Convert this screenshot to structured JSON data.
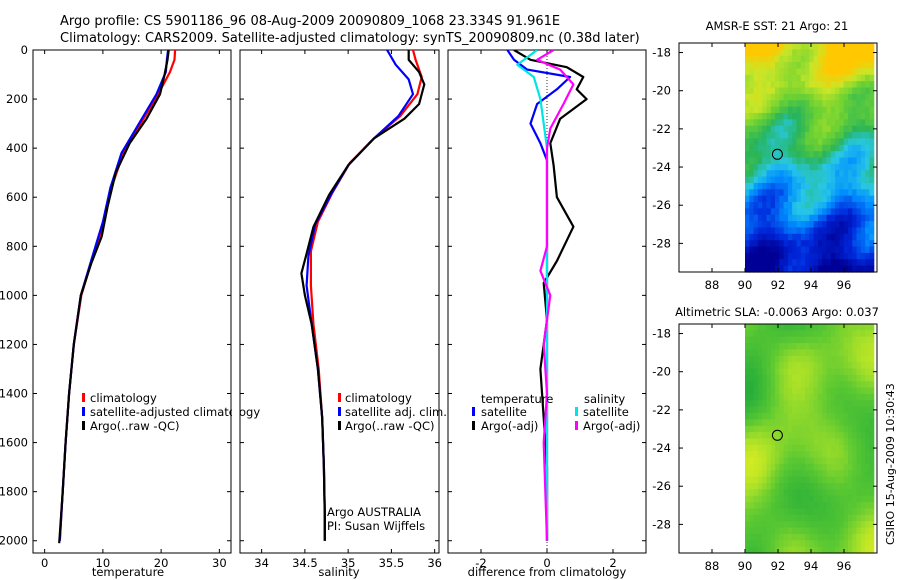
{
  "header": {
    "line1": "Argo profile: CS 5901186_96 08-Aug-2009 20090809_1068 23.334S 91.961E",
    "line2": "Climatology: CARS2009. Satellite-adjusted climatology: synTS_20090809.nc (0.38d later)"
  },
  "side_stamp": "CSIRO 15-Aug-2009 10:30:43",
  "colors": {
    "red": "#ff0000",
    "blue": "#0000ff",
    "black": "#000000",
    "cyan": "#00e5e5",
    "magenta": "#ff00ff",
    "navy": "#0000a0"
  },
  "chart_data": [
    {
      "type": "line",
      "id": "temperature",
      "xlabel": "temperature",
      "ylabel": "",
      "xlim": [
        -2,
        32
      ],
      "ylim": [
        2050,
        0
      ],
      "xticks": [
        "0",
        "10",
        "20",
        "30"
      ],
      "xtick_values": [
        0,
        10,
        20,
        30
      ],
      "yticks": [
        "0",
        "200",
        "400",
        "600",
        "800",
        "1000",
        "1200",
        "1400",
        "1600",
        "1800",
        "2000"
      ],
      "ytick_values": [
        0,
        200,
        400,
        600,
        800,
        1000,
        1200,
        1400,
        1600,
        1800,
        2000
      ],
      "series": [
        {
          "name": "climatology",
          "color": "red",
          "points": [
            [
              22.4,
              0
            ],
            [
              22.3,
              40
            ],
            [
              21.5,
              90
            ],
            [
              19.5,
              180
            ],
            [
              16.5,
              300
            ],
            [
              13.5,
              420
            ],
            [
              11.5,
              560
            ],
            [
              10.2,
              700
            ],
            [
              8.2,
              850
            ],
            [
              6.3,
              1000
            ],
            [
              5.0,
              1200
            ],
            [
              4.2,
              1400
            ],
            [
              3.6,
              1600
            ],
            [
              3.1,
              1800
            ],
            [
              2.6,
              2000
            ]
          ]
        },
        {
          "name": "satellite-adjusted climatology",
          "color": "blue",
          "points": [
            [
              21.2,
              0
            ],
            [
              21.0,
              40
            ],
            [
              20.8,
              90
            ],
            [
              19.2,
              180
            ],
            [
              16.2,
              300
            ],
            [
              13.2,
              420
            ],
            [
              11.3,
              560
            ],
            [
              10.0,
              700
            ],
            [
              8.1,
              850
            ],
            [
              6.2,
              1000
            ],
            [
              5.0,
              1200
            ],
            [
              4.2,
              1400
            ],
            [
              3.6,
              1600
            ],
            [
              3.1,
              1800
            ],
            [
              2.6,
              2000
            ]
          ]
        },
        {
          "name": "Argo(..raw -QC)",
          "color": "black",
          "points": [
            [
              21.3,
              0
            ],
            [
              21.1,
              40
            ],
            [
              20.6,
              100
            ],
            [
              19.8,
              180
            ],
            [
              17.5,
              280
            ],
            [
              14.6,
              380
            ],
            [
              12.2,
              500
            ],
            [
              10.8,
              640
            ],
            [
              9.8,
              760
            ],
            [
              8.0,
              870
            ],
            [
              6.2,
              1000
            ],
            [
              5.0,
              1200
            ],
            [
              4.2,
              1400
            ],
            [
              3.6,
              1600
            ],
            [
              3.1,
              1800
            ],
            [
              2.5,
              2010
            ]
          ]
        }
      ],
      "legend": {
        "placement": "center-left",
        "entries": [
          "climatology",
          "satellite-adjusted climatology",
          "Argo(..raw -QC)"
        ]
      },
      "annotation": ""
    },
    {
      "type": "line",
      "id": "salinity",
      "xlabel": "salinity",
      "xlim": [
        33.75,
        36.05
      ],
      "ylim": [
        2050,
        0
      ],
      "xticks": [
        "34",
        "34.5",
        "35",
        "35.5",
        "36"
      ],
      "xtick_values": [
        34,
        34.5,
        35,
        35.5,
        36
      ],
      "series": [
        {
          "name": "climatology",
          "color": "red",
          "points": [
            [
              35.75,
              0
            ],
            [
              35.78,
              40
            ],
            [
              35.85,
              110
            ],
            [
              35.8,
              180
            ],
            [
              35.6,
              270
            ],
            [
              35.3,
              360
            ],
            [
              35.02,
              460
            ],
            [
              34.82,
              580
            ],
            [
              34.65,
              700
            ],
            [
              34.57,
              820
            ],
            [
              34.57,
              960
            ],
            [
              34.6,
              1120
            ],
            [
              34.66,
              1300
            ],
            [
              34.7,
              1500
            ],
            [
              34.72,
              1700
            ],
            [
              34.73,
              1900
            ],
            [
              34.73,
              2000
            ]
          ]
        },
        {
          "name": "satellite adj. clim.",
          "color": "blue",
          "points": [
            [
              35.45,
              0
            ],
            [
              35.55,
              60
            ],
            [
              35.7,
              120
            ],
            [
              35.75,
              180
            ],
            [
              35.58,
              270
            ],
            [
              35.3,
              360
            ],
            [
              35.0,
              470
            ],
            [
              34.8,
              590
            ],
            [
              34.62,
              710
            ],
            [
              34.54,
              840
            ],
            [
              34.52,
              960
            ],
            [
              34.58,
              1120
            ],
            [
              34.65,
              1300
            ],
            [
              34.7,
              1500
            ],
            [
              34.72,
              1700
            ],
            [
              34.73,
              1900
            ],
            [
              34.73,
              2000
            ]
          ]
        },
        {
          "name": "Argo(..raw -QC)",
          "color": "black",
          "points": [
            [
              35.7,
              0
            ],
            [
              35.7,
              40
            ],
            [
              35.82,
              90
            ],
            [
              35.88,
              140
            ],
            [
              35.82,
              220
            ],
            [
              35.65,
              280
            ],
            [
              35.3,
              360
            ],
            [
              35.0,
              470
            ],
            [
              34.78,
              590
            ],
            [
              34.6,
              720
            ],
            [
              34.52,
              830
            ],
            [
              34.46,
              910
            ],
            [
              34.5,
              1000
            ],
            [
              34.58,
              1120
            ],
            [
              34.65,
              1300
            ],
            [
              34.7,
              1500
            ],
            [
              34.72,
              1700
            ],
            [
              34.73,
              1900
            ],
            [
              34.73,
              2000
            ]
          ]
        }
      ],
      "legend": {
        "placement": "center-left",
        "entries": [
          "climatology",
          "satellite adj. clim.",
          "Argo(..raw -QC)"
        ]
      },
      "annotation": {
        "line1": "Argo AUSTRALIA",
        "line2": "PI: Susan Wijffels"
      }
    },
    {
      "type": "line",
      "id": "difference",
      "xlabel": "difference from climatology",
      "xlim": [
        -3.0,
        3.0
      ],
      "ylim": [
        2050,
        0
      ],
      "xticks": [
        "-2",
        "0",
        "2"
      ],
      "xtick_values": [
        -2,
        0,
        2
      ],
      "series": [
        {
          "name": "temperature satellite",
          "color": "blue",
          "points": [
            [
              -1.2,
              0
            ],
            [
              -1.0,
              40
            ],
            [
              -0.6,
              80
            ],
            [
              0.7,
              110
            ],
            [
              0.3,
              160
            ],
            [
              -0.3,
              220
            ],
            [
              -0.5,
              300
            ],
            [
              -0.2,
              380
            ],
            [
              0,
              450
            ],
            [
              0,
              1000
            ],
            [
              0,
              2000
            ]
          ]
        },
        {
          "name": "temperature Argo(-adj)",
          "color": "black",
          "points": [
            [
              -1.0,
              0
            ],
            [
              -0.5,
              40
            ],
            [
              0.6,
              70
            ],
            [
              1.1,
              110
            ],
            [
              0.9,
              160
            ],
            [
              1.2,
              200
            ],
            [
              0.4,
              280
            ],
            [
              0.1,
              380
            ],
            [
              0.2,
              470
            ],
            [
              0.3,
              600
            ],
            [
              0.8,
              720
            ],
            [
              0.3,
              860
            ],
            [
              -0.1,
              950
            ],
            [
              0,
              1100
            ],
            [
              -0.2,
              1300
            ],
            [
              -0.1,
              1500
            ],
            [
              0,
              1700
            ],
            [
              0,
              2000
            ]
          ]
        },
        {
          "name": "salinity satellite",
          "color": "cyan",
          "points": [
            [
              -0.3,
              0
            ],
            [
              -0.9,
              60
            ],
            [
              -0.4,
              110
            ],
            [
              -0.2,
              200
            ],
            [
              -0.1,
              300
            ],
            [
              0,
              400
            ],
            [
              0,
              1000
            ],
            [
              0,
              2000
            ]
          ]
        },
        {
          "name": "salinity Argo(-adj)",
          "color": "magenta",
          "points": [
            [
              0.2,
              0
            ],
            [
              -0.3,
              40
            ],
            [
              0.4,
              80
            ],
            [
              0.8,
              140
            ],
            [
              0.5,
              220
            ],
            [
              0.1,
              320
            ],
            [
              0,
              400
            ],
            [
              0,
              800
            ],
            [
              -0.2,
              900
            ],
            [
              0.1,
              1000
            ],
            [
              -0.1,
              1200
            ],
            [
              0,
              1400
            ],
            [
              -0.1,
              1600
            ],
            [
              0,
              2000
            ]
          ]
        }
      ],
      "legend": {
        "placement": "center-left",
        "col1_title": "temperature",
        "col2_title": "salinity",
        "col1": [
          "satellite",
          "Argo(-adj)"
        ],
        "col2": [
          "satellite",
          "Argo(-adj)"
        ]
      }
    },
    {
      "type": "heatmap",
      "id": "sst_map",
      "title": "AMSR-E SST: 21 Argo: 21",
      "xlim": [
        86,
        98
      ],
      "ylim": [
        -29.5,
        -17.5
      ],
      "xticks": [
        "88",
        "90",
        "92",
        "94",
        "96"
      ],
      "xtick_values": [
        88,
        90,
        92,
        94,
        96
      ],
      "yticks": [
        "-18",
        "-20",
        "-22",
        "-24",
        "-26",
        "-28"
      ],
      "ytick_values": [
        -18,
        -20,
        -22,
        -24,
        -26,
        -28
      ],
      "data_xlim": [
        90,
        97.8
      ],
      "marker": {
        "lon": 91.961,
        "lat": -23.334
      },
      "palette": "sst"
    },
    {
      "type": "heatmap",
      "id": "sla_map",
      "title": "Altimetric SLA: -0.0063 Argo: 0.037",
      "xlim": [
        86,
        98
      ],
      "ylim": [
        -29.5,
        -17.5
      ],
      "xticks": [
        "88",
        "90",
        "92",
        "94",
        "96"
      ],
      "xtick_values": [
        88,
        90,
        92,
        94,
        96
      ],
      "yticks": [
        "-18",
        "-20",
        "-22",
        "-24",
        "-26",
        "-28"
      ],
      "ytick_values": [
        -18,
        -20,
        -22,
        -24,
        -26,
        -28
      ],
      "data_xlim": [
        90,
        97.8
      ],
      "marker": {
        "lon": 91.961,
        "lat": -23.334
      },
      "palette": "sla"
    }
  ]
}
